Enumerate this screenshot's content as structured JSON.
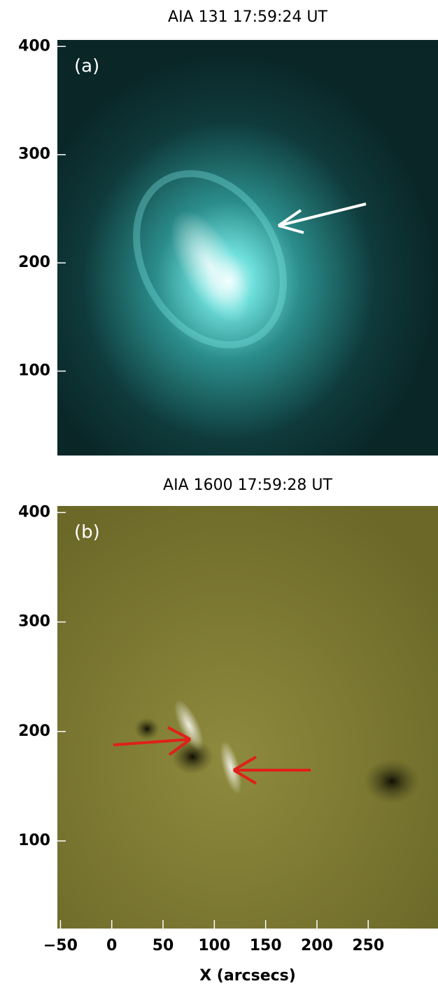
{
  "chart_data": [
    {
      "type": "image",
      "title": "AIA 131  17:59:24 UT",
      "panel_label": "(a)",
      "xlim": [
        -53,
        318
      ],
      "ylim": [
        22,
        406
      ],
      "yticks": [
        100,
        200,
        300,
        400
      ]
    },
    {
      "type": "image",
      "title": "AIA 1600  17:59:28 UT",
      "panel_label": "(b)",
      "xlim": [
        -53,
        318
      ],
      "ylim": [
        20,
        406
      ],
      "yticks": [
        100,
        200,
        300,
        400
      ],
      "xticks": [
        {
          "value": -50,
          "label": "−50"
        },
        0,
        50,
        100,
        150,
        200,
        250
      ],
      "xlabel": "X (arcsecs)"
    }
  ]
}
